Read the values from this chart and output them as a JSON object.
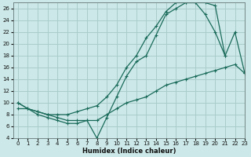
{
  "background_color": "#cce8e8",
  "grid_color": "#aacccc",
  "line_color": "#1a6b5a",
  "xlabel": "Humidex (Indice chaleur)",
  "ylim": [
    4,
    27
  ],
  "xlim": [
    -0.5,
    23
  ],
  "yticks": [
    4,
    6,
    8,
    10,
    12,
    14,
    16,
    18,
    20,
    22,
    24,
    26
  ],
  "xticks": [
    0,
    1,
    2,
    3,
    4,
    5,
    6,
    7,
    8,
    9,
    10,
    11,
    12,
    13,
    14,
    15,
    16,
    17,
    18,
    19,
    20,
    21,
    22,
    23
  ],
  "line1_x": [
    0,
    1,
    2,
    3,
    4,
    5,
    6,
    7,
    8,
    9,
    10,
    11,
    12,
    13,
    14,
    15,
    16,
    17,
    18,
    19,
    20,
    21
  ],
  "line1_y": [
    10,
    9,
    8.5,
    8,
    8,
    8,
    8.5,
    9,
    9.5,
    11,
    13,
    16,
    18,
    21,
    23,
    25.5,
    27,
    27,
    27,
    27,
    26.5,
    18
  ],
  "line2_x": [
    0,
    1,
    2,
    3,
    4,
    5,
    6,
    7,
    8,
    9,
    10,
    11,
    12,
    13,
    14,
    15,
    16,
    17,
    18,
    19,
    20,
    21,
    22,
    23
  ],
  "line2_y": [
    10,
    9,
    8,
    7.5,
    7,
    6.5,
    6.5,
    7,
    4,
    7.5,
    11,
    14.5,
    17,
    18,
    21.5,
    25,
    26,
    27,
    27,
    25,
    22,
    18,
    22,
    15
  ],
  "line3_x": [
    0,
    1,
    2,
    3,
    4,
    5,
    6,
    7,
    8,
    9,
    10,
    11,
    12,
    13,
    14,
    15,
    16,
    17,
    18,
    19,
    20,
    21,
    22,
    23
  ],
  "line3_y": [
    9,
    9,
    8.5,
    8,
    7.5,
    7,
    7,
    7,
    7,
    8,
    9,
    10,
    10.5,
    11,
    12,
    13,
    13.5,
    14,
    14.5,
    15,
    15.5,
    16,
    16.5,
    15
  ]
}
